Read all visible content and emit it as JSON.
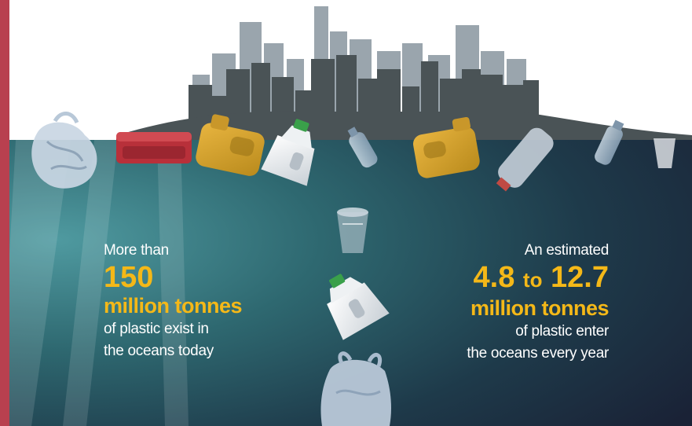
{
  "left_stat": {
    "intro": "More than",
    "number": "150",
    "unit": "million tonnes",
    "line1": "of plastic exist in",
    "line2": "the oceans today"
  },
  "right_stat": {
    "intro": "An estimated",
    "number_low": "4.8",
    "connector": "to",
    "number_high": "12.7",
    "unit": "million tonnes",
    "line1": "of plastic enter",
    "line2": "the oceans every year"
  },
  "colors": {
    "accent": "#f4b818",
    "border": "#b8404f",
    "ocean_light": "#2f6b73",
    "ocean_dark": "#1a2436"
  },
  "icons": [
    "plastic-bag-icon",
    "food-container-icon",
    "oil-jug-icon",
    "milk-jug-icon",
    "water-bottle-icon",
    "plastic-cup-icon",
    "city-skyline-icon"
  ]
}
